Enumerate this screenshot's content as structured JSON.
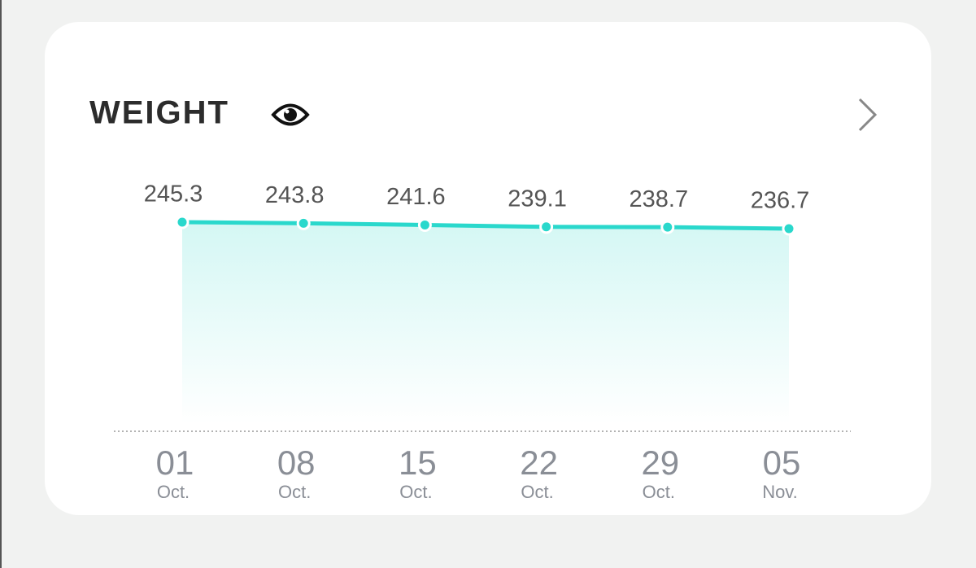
{
  "chart_data": {
    "type": "line",
    "title": "WEIGHT",
    "categories": [
      "01",
      "08",
      "15",
      "22",
      "29",
      "05"
    ],
    "category_months": [
      "Oct.",
      "Oct.",
      "Oct.",
      "Oct.",
      "Oct.",
      "Nov."
    ],
    "values": [
      245.3,
      243.8,
      241.6,
      239.1,
      238.7,
      236.7
    ],
    "color": "#2ad8cc",
    "area": true
  }
}
